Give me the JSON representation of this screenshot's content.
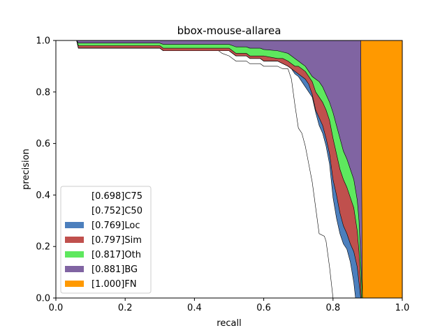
{
  "chart_data": {
    "type": "area",
    "title": "bbox-mouse-allarea",
    "xlabel": "recall",
    "ylabel": "precision",
    "xlim": [
      0.0,
      1.0
    ],
    "ylim": [
      0.0,
      1.0
    ],
    "xticks": [
      "0.0",
      "0.2",
      "0.4",
      "0.6",
      "0.8",
      "1.0"
    ],
    "yticks": [
      "0.0",
      "0.2",
      "0.4",
      "0.6",
      "0.8",
      "1.0"
    ],
    "legend_position": "lower-left",
    "series": [
      {
        "name": "[0.698]C75",
        "color": "#ffffff",
        "points": [
          [
            0,
            1.0
          ],
          [
            0.06,
            1.0
          ],
          [
            0.065,
            0.97
          ],
          [
            0.3,
            0.97
          ],
          [
            0.31,
            0.96
          ],
          [
            0.47,
            0.96
          ],
          [
            0.48,
            0.95
          ],
          [
            0.5,
            0.94
          ],
          [
            0.51,
            0.93
          ],
          [
            0.52,
            0.92
          ],
          [
            0.55,
            0.92
          ],
          [
            0.56,
            0.91
          ],
          [
            0.59,
            0.91
          ],
          [
            0.6,
            0.9
          ],
          [
            0.64,
            0.9
          ],
          [
            0.655,
            0.89
          ],
          [
            0.67,
            0.89
          ],
          [
            0.68,
            0.85
          ],
          [
            0.69,
            0.75
          ],
          [
            0.7,
            0.66
          ],
          [
            0.71,
            0.64
          ],
          [
            0.72,
            0.59
          ],
          [
            0.73,
            0.52
          ],
          [
            0.74,
            0.45
          ],
          [
            0.75,
            0.35
          ],
          [
            0.76,
            0.25
          ],
          [
            0.775,
            0.24
          ],
          [
            0.78,
            0.22
          ],
          [
            0.79,
            0.12
          ],
          [
            0.8,
            0.0
          ]
        ]
      },
      {
        "name": "[0.752]C50",
        "color": "#ffffff",
        "points": [
          [
            0,
            1.0
          ],
          [
            0.06,
            1.0
          ],
          [
            0.065,
            0.97
          ],
          [
            0.3,
            0.97
          ],
          [
            0.31,
            0.96
          ],
          [
            0.5,
            0.96
          ],
          [
            0.51,
            0.95
          ],
          [
            0.52,
            0.94
          ],
          [
            0.55,
            0.94
          ],
          [
            0.56,
            0.93
          ],
          [
            0.59,
            0.93
          ],
          [
            0.6,
            0.92
          ],
          [
            0.64,
            0.92
          ],
          [
            0.655,
            0.91
          ],
          [
            0.67,
            0.9
          ],
          [
            0.68,
            0.89
          ],
          [
            0.69,
            0.87
          ],
          [
            0.7,
            0.86
          ],
          [
            0.71,
            0.84
          ],
          [
            0.72,
            0.82
          ],
          [
            0.73,
            0.8
          ],
          [
            0.74,
            0.78
          ],
          [
            0.75,
            0.72
          ],
          [
            0.76,
            0.67
          ],
          [
            0.77,
            0.64
          ],
          [
            0.78,
            0.59
          ],
          [
            0.79,
            0.52
          ],
          [
            0.8,
            0.39
          ],
          [
            0.81,
            0.31
          ],
          [
            0.82,
            0.25
          ],
          [
            0.83,
            0.21
          ],
          [
            0.84,
            0.19
          ],
          [
            0.85,
            0.14
          ],
          [
            0.86,
            0.06
          ],
          [
            0.865,
            0.0
          ]
        ]
      },
      {
        "name": "[0.769]Loc",
        "color": "#4c7fbd",
        "points": [
          [
            0,
            1.0
          ],
          [
            0.06,
            1.0
          ],
          [
            0.065,
            0.97
          ],
          [
            0.3,
            0.97
          ],
          [
            0.31,
            0.96
          ],
          [
            0.5,
            0.96
          ],
          [
            0.51,
            0.95
          ],
          [
            0.52,
            0.94
          ],
          [
            0.55,
            0.94
          ],
          [
            0.56,
            0.93
          ],
          [
            0.59,
            0.93
          ],
          [
            0.6,
            0.92
          ],
          [
            0.64,
            0.92
          ],
          [
            0.655,
            0.91
          ],
          [
            0.67,
            0.9
          ],
          [
            0.68,
            0.89
          ],
          [
            0.69,
            0.88
          ],
          [
            0.7,
            0.87
          ],
          [
            0.71,
            0.86
          ],
          [
            0.72,
            0.85
          ],
          [
            0.73,
            0.83
          ],
          [
            0.74,
            0.79
          ],
          [
            0.75,
            0.73
          ],
          [
            0.76,
            0.7
          ],
          [
            0.77,
            0.67
          ],
          [
            0.78,
            0.62
          ],
          [
            0.79,
            0.56
          ],
          [
            0.8,
            0.46
          ],
          [
            0.81,
            0.4
          ],
          [
            0.82,
            0.33
          ],
          [
            0.83,
            0.28
          ],
          [
            0.84,
            0.25
          ],
          [
            0.85,
            0.21
          ],
          [
            0.86,
            0.18
          ],
          [
            0.87,
            0.12
          ],
          [
            0.875,
            0.06
          ],
          [
            0.88,
            0.0
          ]
        ]
      },
      {
        "name": "[0.797]Sim",
        "color": "#c0504d",
        "points": [
          [
            0,
            1.0
          ],
          [
            0.06,
            1.0
          ],
          [
            0.065,
            0.98
          ],
          [
            0.3,
            0.98
          ],
          [
            0.31,
            0.97
          ],
          [
            0.5,
            0.97
          ],
          [
            0.51,
            0.96
          ],
          [
            0.52,
            0.95
          ],
          [
            0.55,
            0.95
          ],
          [
            0.56,
            0.94
          ],
          [
            0.59,
            0.94
          ],
          [
            0.6,
            0.94
          ],
          [
            0.64,
            0.93
          ],
          [
            0.655,
            0.93
          ],
          [
            0.67,
            0.92
          ],
          [
            0.68,
            0.91
          ],
          [
            0.69,
            0.9
          ],
          [
            0.7,
            0.9
          ],
          [
            0.71,
            0.89
          ],
          [
            0.72,
            0.88
          ],
          [
            0.73,
            0.86
          ],
          [
            0.74,
            0.84
          ],
          [
            0.75,
            0.8
          ],
          [
            0.76,
            0.78
          ],
          [
            0.77,
            0.76
          ],
          [
            0.78,
            0.73
          ],
          [
            0.79,
            0.69
          ],
          [
            0.8,
            0.62
          ],
          [
            0.81,
            0.56
          ],
          [
            0.82,
            0.5
          ],
          [
            0.83,
            0.46
          ],
          [
            0.84,
            0.43
          ],
          [
            0.85,
            0.39
          ],
          [
            0.86,
            0.35
          ],
          [
            0.87,
            0.26
          ],
          [
            0.875,
            0.18
          ],
          [
            0.88,
            0.06
          ],
          [
            0.882,
            0.0
          ]
        ]
      },
      {
        "name": "[0.817]Oth",
        "color": "#5ee85e",
        "points": [
          [
            0,
            1.0
          ],
          [
            0.06,
            1.0
          ],
          [
            0.065,
            0.99
          ],
          [
            0.3,
            0.99
          ],
          [
            0.31,
            0.985
          ],
          [
            0.5,
            0.985
          ],
          [
            0.51,
            0.98
          ],
          [
            0.52,
            0.975
          ],
          [
            0.55,
            0.975
          ],
          [
            0.56,
            0.97
          ],
          [
            0.59,
            0.97
          ],
          [
            0.6,
            0.965
          ],
          [
            0.64,
            0.96
          ],
          [
            0.655,
            0.955
          ],
          [
            0.67,
            0.95
          ],
          [
            0.68,
            0.94
          ],
          [
            0.69,
            0.93
          ],
          [
            0.7,
            0.92
          ],
          [
            0.71,
            0.91
          ],
          [
            0.72,
            0.9
          ],
          [
            0.73,
            0.88
          ],
          [
            0.74,
            0.86
          ],
          [
            0.75,
            0.85
          ],
          [
            0.76,
            0.84
          ],
          [
            0.77,
            0.82
          ],
          [
            0.78,
            0.79
          ],
          [
            0.79,
            0.76
          ],
          [
            0.8,
            0.72
          ],
          [
            0.81,
            0.67
          ],
          [
            0.82,
            0.62
          ],
          [
            0.83,
            0.57
          ],
          [
            0.84,
            0.54
          ],
          [
            0.85,
            0.5
          ],
          [
            0.86,
            0.46
          ],
          [
            0.87,
            0.38
          ],
          [
            0.875,
            0.3
          ],
          [
            0.88,
            0.15
          ],
          [
            0.885,
            0.0
          ]
        ]
      },
      {
        "name": "[0.881]BG",
        "color": "#8064a2",
        "points": [
          [
            0,
            1.0
          ],
          [
            0.88,
            1.0
          ],
          [
            0.885,
            0.0
          ]
        ]
      },
      {
        "name": "[1.000]FN",
        "color": "#ff9900",
        "points": [
          [
            0,
            1.0
          ],
          [
            1.0,
            1.0
          ],
          [
            1.0,
            0.0
          ]
        ]
      }
    ]
  }
}
